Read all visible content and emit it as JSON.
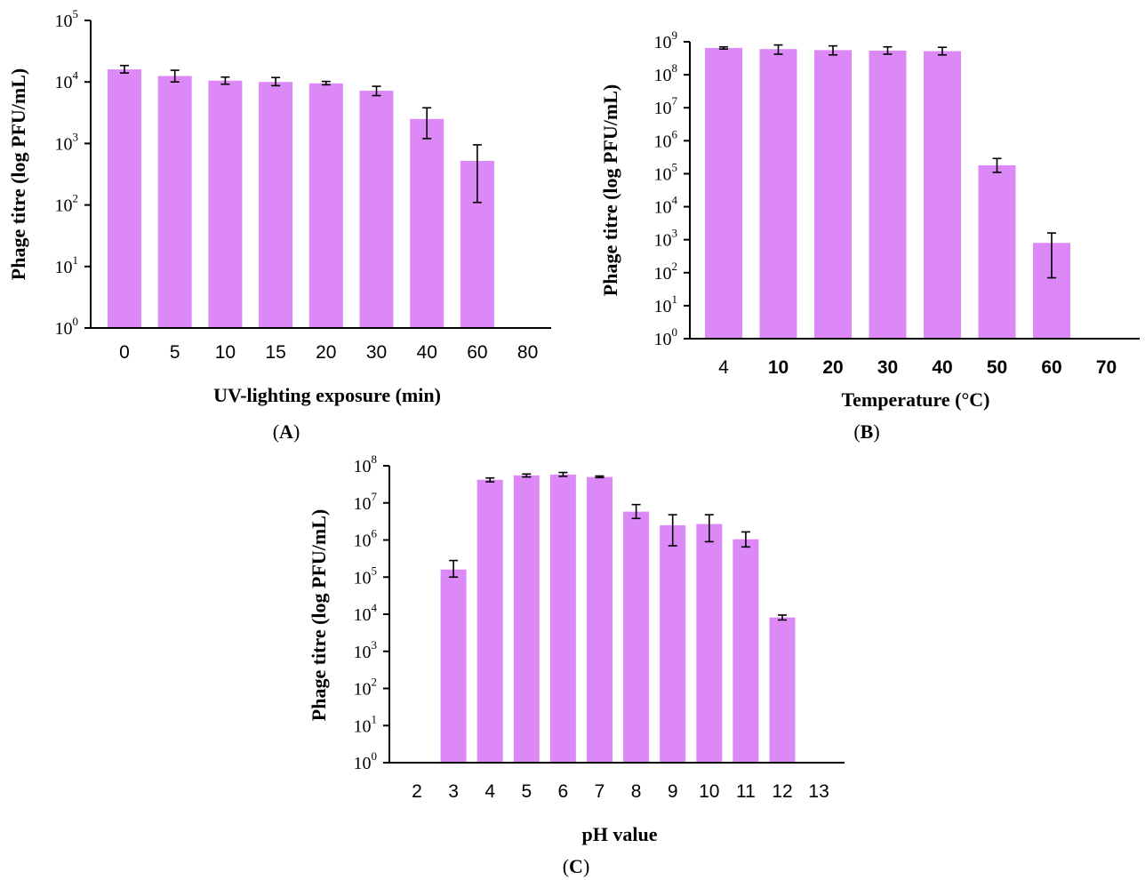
{
  "chart_data": [
    {
      "panel": "A",
      "panel_label": "A",
      "type": "bar",
      "xlabel": "UV-lighting exposure (min)",
      "ylabel": "Phage titre (log PFU/mL)",
      "y_scale": "log",
      "ylim": [
        1,
        100000
      ],
      "y_ticks": [
        {
          "base": "10",
          "exp": "0"
        },
        {
          "base": "10",
          "exp": "1"
        },
        {
          "base": "10",
          "exp": "2"
        },
        {
          "base": "10",
          "exp": "3"
        },
        {
          "base": "10",
          "exp": "4"
        },
        {
          "base": "10",
          "exp": "5"
        }
      ],
      "categories": [
        "0",
        "5",
        "10",
        "15",
        "20",
        "30",
        "40",
        "60",
        "80"
      ],
      "bold_ticks": false,
      "values": [
        16000,
        12500,
        10500,
        10000,
        9500,
        7200,
        2500,
        520,
        null
      ],
      "error_low": [
        14000,
        10000,
        9200,
        8700,
        9000,
        6000,
        1200,
        110,
        null
      ],
      "error_high": [
        18500,
        15500,
        12000,
        11800,
        10200,
        8500,
        3800,
        950,
        null
      ],
      "bar_color": "#dd88f7",
      "grid": false
    },
    {
      "panel": "B",
      "panel_label": "B",
      "type": "bar",
      "xlabel": "Temperature (°C)",
      "ylabel": "Phage titre (log PFU/mL)",
      "y_scale": "log",
      "ylim": [
        1,
        1000000000
      ],
      "y_ticks": [
        {
          "base": "10",
          "exp": "0"
        },
        {
          "base": "10",
          "exp": "1"
        },
        {
          "base": "10",
          "exp": "2"
        },
        {
          "base": "10",
          "exp": "3"
        },
        {
          "base": "10",
          "exp": "4"
        },
        {
          "base": "10",
          "exp": "5"
        },
        {
          "base": "10",
          "exp": "6"
        },
        {
          "base": "10",
          "exp": "7"
        },
        {
          "base": "10",
          "exp": "8"
        },
        {
          "base": "10",
          "exp": "9"
        }
      ],
      "categories": [
        "4",
        "10",
        "20",
        "30",
        "40",
        "50",
        "60",
        "70"
      ],
      "bold_ticks": true,
      "values": [
        650000000,
        600000000,
        560000000,
        540000000,
        520000000,
        180000,
        800,
        null
      ],
      "error_low": [
        600000000,
        420000000,
        400000000,
        420000000,
        400000000,
        110000,
        70,
        null
      ],
      "error_high": [
        700000000,
        800000000,
        750000000,
        700000000,
        680000000,
        290000,
        1600,
        null
      ],
      "bar_color": "#dd88f7",
      "grid": false
    },
    {
      "panel": "C",
      "panel_label": "C",
      "type": "bar",
      "xlabel": "pH value",
      "ylabel": "Phage titre (log PFU/mL)",
      "y_scale": "log",
      "ylim": [
        1,
        100000000
      ],
      "y_ticks": [
        {
          "base": "10",
          "exp": "0"
        },
        {
          "base": "10",
          "exp": "1"
        },
        {
          "base": "10",
          "exp": "2"
        },
        {
          "base": "10",
          "exp": "3"
        },
        {
          "base": "10",
          "exp": "4"
        },
        {
          "base": "10",
          "exp": "5"
        },
        {
          "base": "10",
          "exp": "6"
        },
        {
          "base": "10",
          "exp": "7"
        },
        {
          "base": "10",
          "exp": "8"
        }
      ],
      "categories": [
        "2",
        "3",
        "4",
        "5",
        "6",
        "7",
        "8",
        "9",
        "10",
        "11",
        "12",
        "13"
      ],
      "bold_ticks": false,
      "values": [
        null,
        160000,
        42000000,
        55000000,
        58000000,
        50000000,
        5800000,
        2500000,
        2700000,
        1050000,
        8200,
        null
      ],
      "error_low": [
        null,
        100000,
        37000000,
        50000000,
        52000000,
        48000000,
        3800000,
        700000,
        900000,
        650000,
        7000,
        null
      ],
      "error_high": [
        null,
        280000,
        47000000,
        60000000,
        66000000,
        53000000,
        9000000,
        4800000,
        4800000,
        1650000,
        9500,
        null
      ],
      "bar_color": "#dd88f7",
      "grid": false
    }
  ]
}
